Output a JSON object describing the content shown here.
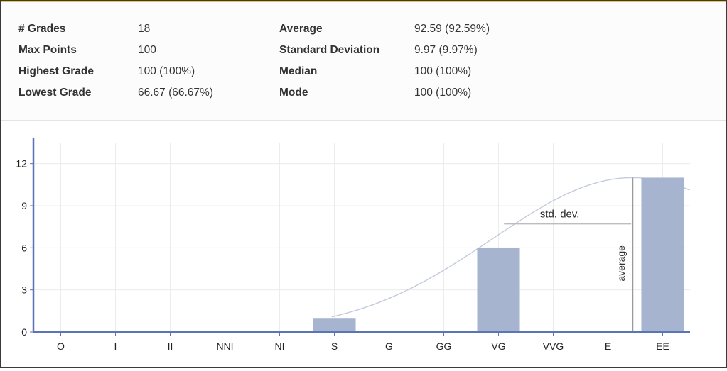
{
  "stats": {
    "left": [
      {
        "label": "# Grades",
        "value": "18"
      },
      {
        "label": "Max Points",
        "value": "100"
      },
      {
        "label": "Highest Grade",
        "value": "100 (100%)"
      },
      {
        "label": "Lowest Grade",
        "value": "66.67 (66.67%)"
      }
    ],
    "right": [
      {
        "label": "Average",
        "value": "92.59 (92.59%)"
      },
      {
        "label": "Standard Deviation",
        "value": "9.97 (9.97%)"
      },
      {
        "label": "Median",
        "value": "100 (100%)"
      },
      {
        "label": "Mode",
        "value": "100 (100%)"
      }
    ]
  },
  "colors": {
    "bar": "#a7b4cf",
    "curve": "#c3cadc",
    "axis": "#5b74b8",
    "grid": "#ececec",
    "marker": "#9a9a9a"
  },
  "chart_data": {
    "type": "bar",
    "categories": [
      "O",
      "I",
      "II",
      "NNI",
      "NI",
      "S",
      "G",
      "GG",
      "VG",
      "VVG",
      "E",
      "EE"
    ],
    "values": [
      0,
      0,
      0,
      0,
      0,
      1,
      0,
      0,
      6,
      0,
      0,
      11
    ],
    "ylim": [
      0,
      13.5
    ],
    "yticks": [
      0,
      3,
      6,
      9,
      12
    ],
    "grid": true,
    "annotations": {
      "average_label": "average",
      "stddev_label": "std. dev."
    }
  }
}
